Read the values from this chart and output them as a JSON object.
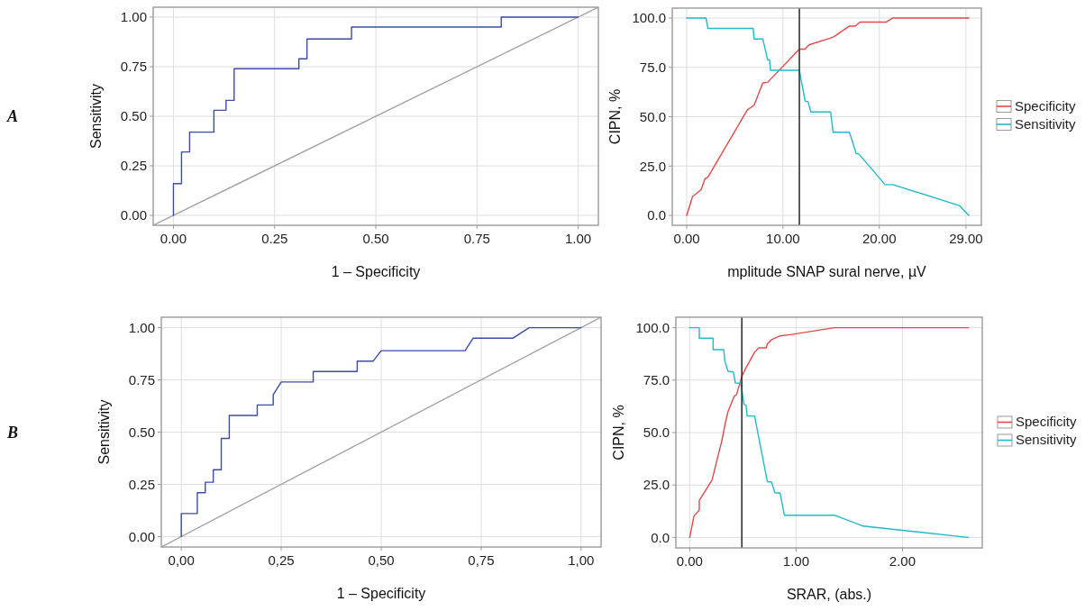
{
  "chart_data": [
    {
      "type": "line",
      "annotations": [
        "A"
      ],
      "xlabel": "1 – Specificity",
      "ylabel": "Sensitivity",
      "xlim": [
        -0.05,
        1.05
      ],
      "ylim": [
        -0.05,
        1.05
      ],
      "xticks": [
        {
          "value": 0,
          "label": "0.00"
        },
        {
          "value": 0.25,
          "label": "0.25"
        },
        {
          "value": 0.5,
          "label": "0.50"
        },
        {
          "value": 0.75,
          "label": "0.75"
        },
        {
          "value": 1,
          "label": "1.00"
        }
      ],
      "yticks": [
        {
          "value": 0,
          "label": "0.00"
        },
        {
          "value": 0.25,
          "label": "0.25"
        },
        {
          "value": 0.5,
          "label": "0.50"
        },
        {
          "value": 0.75,
          "label": "0.75"
        },
        {
          "value": 1,
          "label": "1.00"
        }
      ],
      "grid": true,
      "series": [
        {
          "color": "#a3a3a3",
          "x": [
            -0.05,
            1.05
          ],
          "values": [
            -0.05,
            1.05
          ]
        },
        {
          "color": "#3d4ba6",
          "x": [
            0,
            0,
            0.02,
            0.02,
            0.04,
            0.04,
            0.1,
            0.1,
            0.13,
            0.13,
            0.15,
            0.15,
            0.31,
            0.31,
            0.33,
            0.33,
            0.44,
            0.44,
            0.81,
            0.81,
            1
          ],
          "values": [
            0,
            0.16,
            0.16,
            0.32,
            0.32,
            0.42,
            0.42,
            0.53,
            0.53,
            0.58,
            0.58,
            0.74,
            0.74,
            0.79,
            0.79,
            0.89,
            0.89,
            0.95,
            0.95,
            1,
            1
          ]
        }
      ]
    },
    {
      "type": "line",
      "xlabel": "mplitude SNAP sural nerve, µV",
      "ylabel": "CIPN, %",
      "xlim": [
        -1.5,
        30.6
      ],
      "ylim": [
        -5,
        105
      ],
      "xticks": [
        {
          "value": 0,
          "label": "0.00"
        },
        {
          "value": 10,
          "label": "10.00"
        },
        {
          "value": 20,
          "label": "20.00"
        },
        {
          "value": 29,
          "label": "29.00"
        }
      ],
      "yticks": [
        {
          "value": 0,
          "label": "0.0"
        },
        {
          "value": 25,
          "label": "25.0"
        },
        {
          "value": 50,
          "label": "50.0"
        },
        {
          "value": 75,
          "label": "75.0"
        },
        {
          "value": 100,
          "label": "100.0"
        }
      ],
      "grid": true,
      "legend": "right",
      "ref_lines": [
        {
          "axis": "x",
          "value": 11.7,
          "color": "#333333"
        }
      ],
      "series": [
        {
          "name": "Specificity",
          "color": "#e04a4a",
          "x": [
            0,
            0.6,
            1.5,
            1.9,
            2.2,
            6.3,
            7.0,
            7.9,
            8.4,
            11.7,
            12.3,
            12.7,
            14.9,
            15.3,
            16.9,
            17.5,
            18.0,
            20.7,
            21.4,
            29.3
          ],
          "values": [
            0,
            9.5,
            13,
            18.6,
            19.4,
            53.5,
            55.8,
            67.1,
            67.4,
            84.2,
            84.2,
            86.4,
            89.8,
            90.6,
            95.9,
            95.9,
            97.9,
            97.9,
            100,
            100
          ]
        },
        {
          "name": "Sensitivity",
          "color": "#22b9c9",
          "x": [
            0,
            2.0,
            2.2,
            6.9,
            7.0,
            7.9,
            8.4,
            8.6,
            8.7,
            11.7,
            12.3,
            12.6,
            12.9,
            14.95,
            15.2,
            16.9,
            17.6,
            17.9,
            20.6,
            21.4,
            28.3,
            29.3
          ],
          "values": [
            100,
            100,
            94.7,
            94.7,
            89.4,
            89.4,
            78.8,
            78.8,
            73.5,
            73.5,
            57.9,
            57.6,
            52.4,
            52.4,
            42.1,
            42.1,
            31.4,
            31,
            15.6,
            15.6,
            5,
            0
          ]
        }
      ]
    },
    {
      "type": "line",
      "annotations": [
        "B"
      ],
      "xlabel": "1 – Specificity",
      "ylabel": "Sensitivity",
      "xlim": [
        -0.05,
        1.05
      ],
      "ylim": [
        -0.05,
        1.05
      ],
      "xticks": [
        {
          "value": 0,
          "label": "0,00"
        },
        {
          "value": 0.25,
          "label": "0,25"
        },
        {
          "value": 0.5,
          "label": "0,50"
        },
        {
          "value": 0.75,
          "label": "0,75"
        },
        {
          "value": 1,
          "label": "1,00"
        }
      ],
      "yticks": [
        {
          "value": 0,
          "label": "0.00"
        },
        {
          "value": 0.25,
          "label": "0.25"
        },
        {
          "value": 0.5,
          "label": "0.50"
        },
        {
          "value": 0.75,
          "label": "0.75"
        },
        {
          "value": 1,
          "label": "1.00"
        }
      ],
      "grid": true,
      "series": [
        {
          "color": "#a3a3a3",
          "x": [
            -0.05,
            1.05
          ],
          "values": [
            -0.05,
            1.05
          ]
        },
        {
          "color": "#3d4ba6",
          "x": [
            0,
            0,
            0.04,
            0.04,
            0.06,
            0.06,
            0.08,
            0.08,
            0.1,
            0.1,
            0.12,
            0.12,
            0.19,
            0.19,
            0.23,
            0.23,
            0.25,
            0.33,
            0.33,
            0.44,
            0.44,
            0.48,
            0.5,
            0.71,
            0.73,
            0.83,
            0.87,
            1
          ],
          "values": [
            0,
            0.11,
            0.11,
            0.21,
            0.21,
            0.26,
            0.26,
            0.32,
            0.32,
            0.47,
            0.47,
            0.58,
            0.58,
            0.63,
            0.63,
            0.68,
            0.74,
            0.74,
            0.79,
            0.79,
            0.84,
            0.84,
            0.89,
            0.89,
            0.95,
            0.95,
            1,
            1
          ]
        }
      ]
    },
    {
      "type": "line",
      "xlabel": "SRAR, (abs.)",
      "ylabel": "CIPN, %",
      "xlim": [
        -0.13,
        2.75
      ],
      "ylim": [
        -5,
        105
      ],
      "xticks": [
        {
          "value": 0,
          "label": "0.00"
        },
        {
          "value": 1,
          "label": "1.00"
        },
        {
          "value": 2,
          "label": "2.00"
        }
      ],
      "yticks": [
        {
          "value": 0,
          "label": "0.0"
        },
        {
          "value": 25,
          "label": "25.0"
        },
        {
          "value": 50,
          "label": "50.0"
        },
        {
          "value": 75,
          "label": "75.0"
        },
        {
          "value": 100,
          "label": "100.0"
        }
      ],
      "grid": true,
      "legend": "right",
      "ref_lines": [
        {
          "axis": "x",
          "value": 0.49,
          "color": "#333333"
        }
      ],
      "series": [
        {
          "name": "Specificity",
          "color": "#e04a4a",
          "x": [
            0,
            0.04,
            0.09,
            0.09,
            0.21,
            0.3,
            0.34,
            0.36,
            0.42,
            0.44,
            0.49,
            0.53,
            0.61,
            0.65,
            0.72,
            0.73,
            0.77,
            0.85,
            0.96,
            1.36,
            2.62
          ],
          "values": [
            0,
            10.2,
            13,
            17.6,
            27.4,
            45.7,
            55.7,
            60,
            67.5,
            68,
            76.8,
            81,
            88.3,
            90.4,
            90.4,
            92.3,
            94.3,
            96.1,
            96.8,
            100,
            100
          ]
        },
        {
          "name": "Sensitivity",
          "color": "#22b9c9",
          "x": [
            0,
            0.09,
            0.09,
            0.22,
            0.22,
            0.32,
            0.33,
            0.36,
            0.41,
            0.43,
            0.48,
            0.51,
            0.53,
            0.54,
            0.61,
            0.65,
            0.73,
            0.77,
            0.8,
            0.85,
            0.89,
            1.36,
            1.63,
            2.62
          ],
          "values": [
            100,
            100,
            95,
            95,
            89.5,
            89.5,
            84.2,
            79.2,
            78.9,
            73.6,
            73.5,
            63.5,
            62.9,
            57.9,
            57.9,
            47.4,
            26.6,
            26.4,
            21.3,
            21.1,
            10.6,
            10.6,
            5.4,
            0
          ]
        }
      ]
    }
  ]
}
